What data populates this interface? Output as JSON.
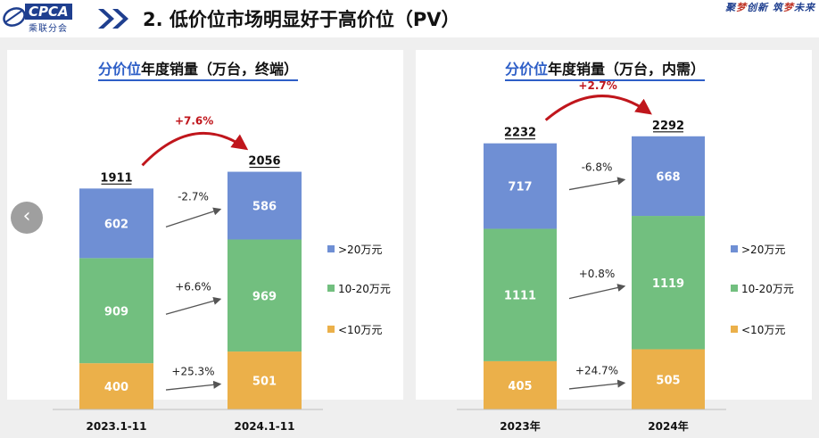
{
  "header": {
    "logo_text": "CPCA",
    "logo_subtext": "乘联分会",
    "title": "2. 低价位市场明显好于高价位（PV）",
    "slogan_part1": "聚",
    "slogan_part2": "梦",
    "slogan_part3": "创新 筑",
    "slogan_part4": "梦",
    "slogan_part5": "未来"
  },
  "colors": {
    "gt20": "#6f8fd4",
    "mid": "#72bf7f",
    "lt10": "#ebb04a",
    "arrow_red": "#c0161c",
    "title_accent": "#2e5fc7"
  },
  "chart_data": [
    {
      "type": "bar",
      "stacked": true,
      "title_accent": "分价位",
      "title_rest": "年度销量（万台，终端）",
      "categories": [
        "2023.1-11",
        "2024.1-11"
      ],
      "series": [
        {
          "name": "<10万元",
          "values": [
            400,
            501
          ]
        },
        {
          "name": "10-20万元",
          "values": [
            909,
            969
          ]
        },
        {
          "name": ">20万元",
          "values": [
            602,
            586
          ]
        }
      ],
      "totals": [
        "1911",
        "2056"
      ],
      "growth_total": "+7.6%",
      "growth_segments": {
        "lt10": "+25.3%",
        "mid": "+6.6%",
        "gt20": "-2.7%"
      },
      "legend": [
        ">20万元",
        "10-20万元",
        "<10万元"
      ],
      "legend_position": "right"
    },
    {
      "type": "bar",
      "stacked": true,
      "title_accent": "分价位",
      "title_rest": "年度销量（万台，内需）",
      "categories": [
        "2023年",
        "2024年"
      ],
      "series": [
        {
          "name": "<10万元",
          "values": [
            405,
            505
          ]
        },
        {
          "name": "10-20万元",
          "values": [
            1111,
            1119
          ]
        },
        {
          "name": ">20万元",
          "values": [
            717,
            668
          ]
        }
      ],
      "totals": [
        "2232",
        "2292"
      ],
      "growth_total": "+2.7%",
      "growth_segments": {
        "lt10": "+24.7%",
        "mid": "+0.8%",
        "gt20": "-6.8%"
      },
      "legend": [
        ">20万元",
        "10-20万元",
        "<10万元"
      ],
      "legend_position": "right"
    }
  ],
  "controls": {
    "prev_glyph": "‹"
  }
}
